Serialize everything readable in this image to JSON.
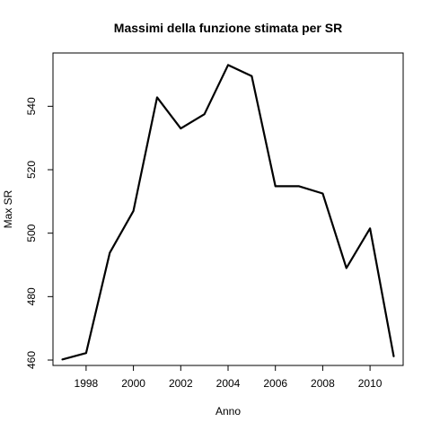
{
  "chart_data": {
    "type": "line",
    "title": "Massimi della funzione stimata per SR",
    "xlabel": "Anno",
    "ylabel": "Max SR",
    "xlim": [
      1996.6,
      2011.4
    ],
    "ylim": [
      458.3,
      556.8
    ],
    "x_ticks": [
      1998,
      2000,
      2002,
      2004,
      2006,
      2008,
      2010
    ],
    "y_ticks": [
      460,
      480,
      500,
      520,
      540
    ],
    "grid": false,
    "legend": "none",
    "colors": {
      "line": "#000000",
      "frame": "#000000",
      "background": "#ffffff"
    },
    "x": [
      1997,
      1998,
      1999,
      2000,
      2001,
      2002,
      2003,
      2004,
      2005,
      2006,
      2007,
      2008,
      2009,
      2010,
      2011
    ],
    "series": [
      {
        "values": [
          460.2,
          462.2,
          493.8,
          507.0,
          542.8,
          533.0,
          537.5,
          553.0,
          549.5,
          514.8,
          514.8,
          512.5,
          489.0,
          501.5,
          461.2
        ]
      }
    ]
  }
}
